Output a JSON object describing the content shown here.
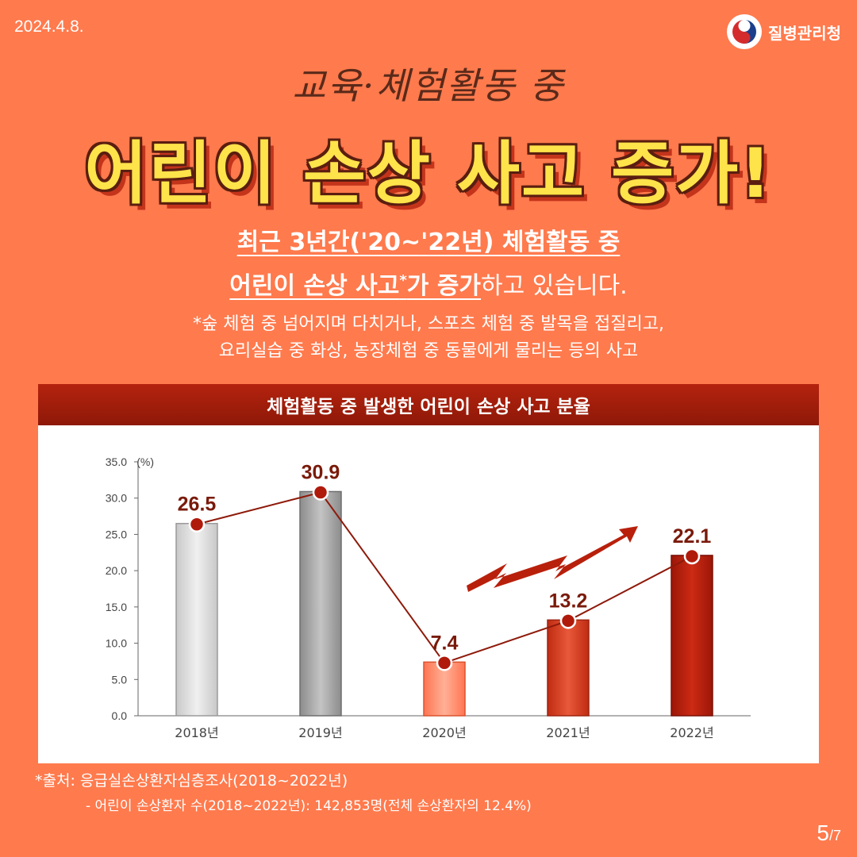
{
  "date": "2024.4.8.",
  "org": "질병관리청",
  "subtitle": "교육·체험활동 중",
  "title": "어린이 손상 사고 증가!",
  "lead": {
    "line1": "최근 3년간('20~'22년) 체험활동 중",
    "line2_underlined": "어린이 손상 사고",
    "line2_sup": "*",
    "line2_underlined_b": "가 증가",
    "line2_rest": "하고 있습니다."
  },
  "note": {
    "line1": "*숲 체험 중 넘어지며 다치거나, 스포츠 체험 중 발목을 접질리고,",
    "line2": "요리실습 중 화상, 농장체험 중 동물에게 물리는 등의 사고"
  },
  "chart_header": "체험활동 중 발생한 어린이 손상 사고 분율",
  "chart_data": {
    "type": "bar",
    "categories": [
      "2018년",
      "2019년",
      "2020년",
      "2021년",
      "2022년"
    ],
    "values": [
      26.5,
      30.9,
      7.4,
      13.2,
      22.1
    ],
    "value_labels": [
      "26.5",
      "30.9",
      "7.4",
      "13.2",
      "22.1"
    ],
    "ylabel": "(%)",
    "ylim": [
      0,
      35
    ],
    "yticks": [
      "0.0",
      "5.0",
      "10.0",
      "15.0",
      "20.0",
      "25.0",
      "30.0",
      "35.0"
    ],
    "overlay_line": true,
    "legend": "none",
    "grid": false
  },
  "colors": {
    "background": "#FF7A4D",
    "header": "#A01E0B",
    "bar_2018": "#DCDCDC",
    "bar_2019": "#A9A9A9",
    "bar_2020": "#FF8A66",
    "bar_2021": "#D63A1C",
    "bar_2022": "#B21A0A",
    "marker": "#B01A0B",
    "label": "#7A1A0A"
  },
  "source": {
    "line1": "*출처: 응급실손상환자심층조사(2018~2022년)",
    "line2": "- 어린이 손상환자 수(2018~2022년): 142,853명(전체 손상환자의 12.4%)"
  },
  "page": {
    "current": "5",
    "total": "/7"
  }
}
